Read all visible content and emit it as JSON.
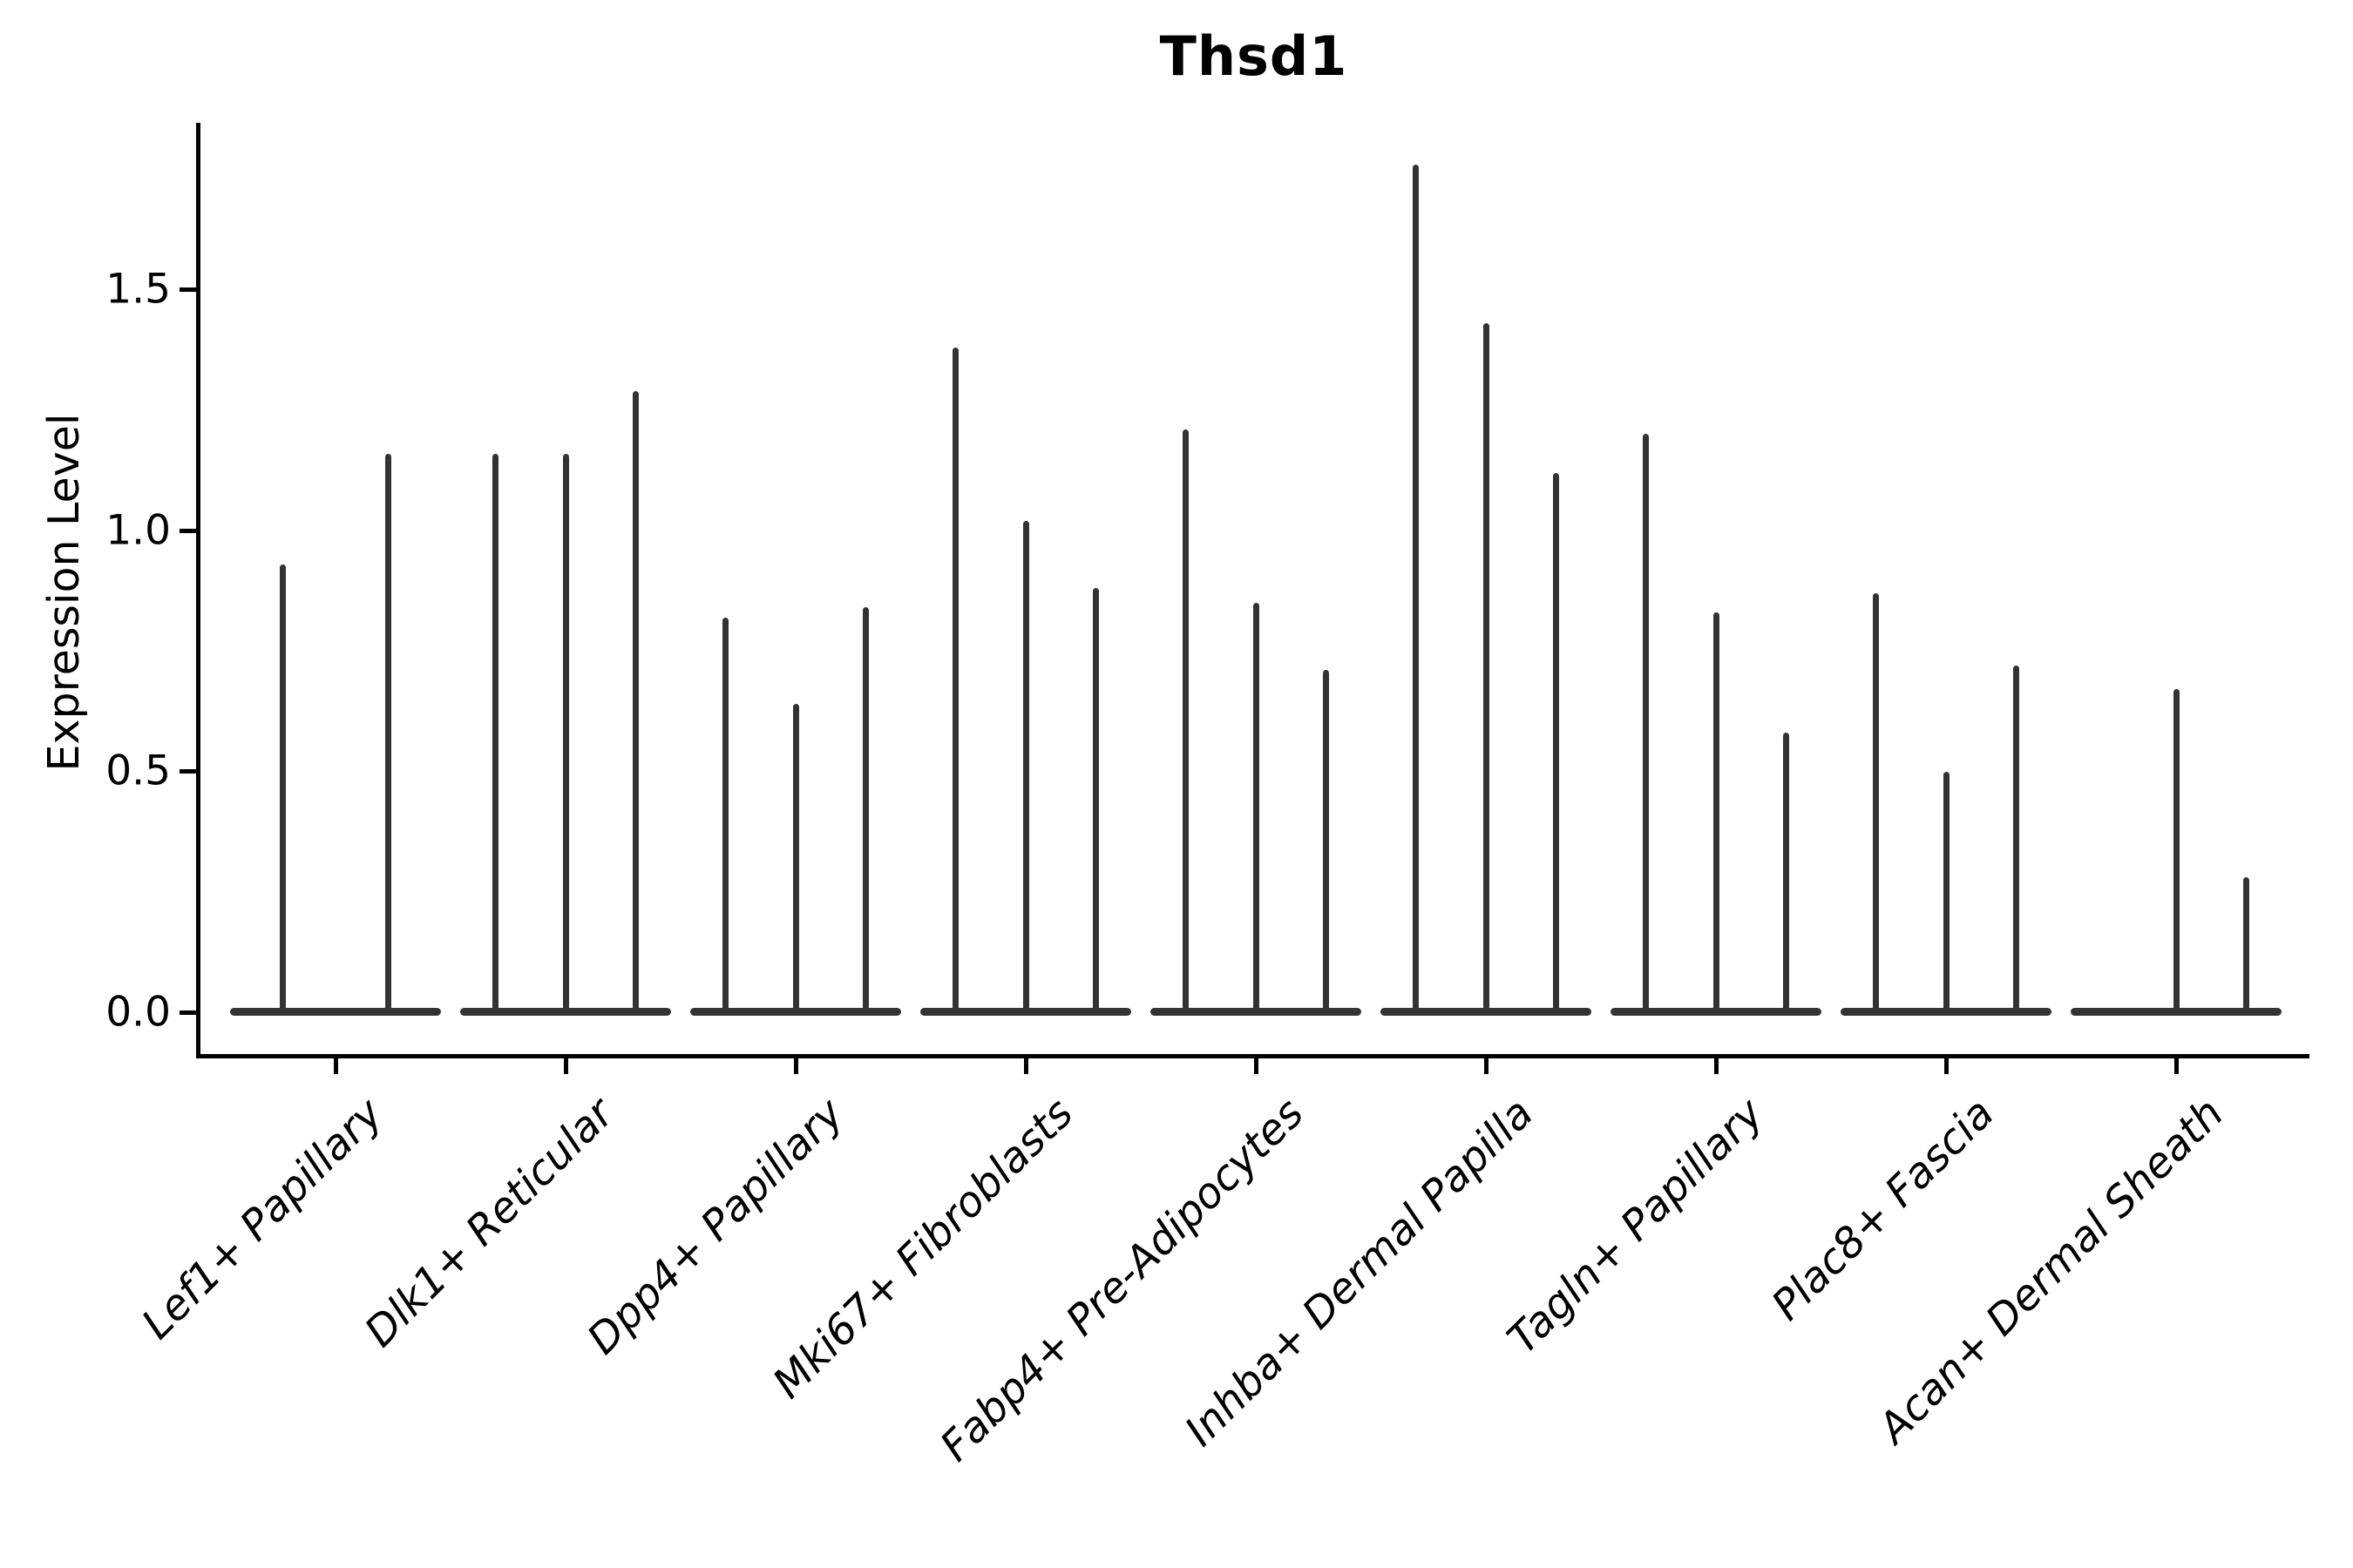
{
  "title": "Thsd1",
  "axes": {
    "ylabel": "Expression Level",
    "yticks": [
      "0.0",
      "0.5",
      "1.0",
      "1.5"
    ],
    "ytick_values": [
      0.0,
      0.5,
      1.0,
      1.5
    ]
  },
  "colors": {
    "violin": "#333333",
    "axis": "#000000",
    "background": "#ffffff",
    "text": "#000000"
  },
  "chart_data": {
    "type": "violin",
    "title": "Thsd1",
    "xlabel": "",
    "ylabel": "Expression Level",
    "ylim": [
      0,
      1.85
    ],
    "grid": false,
    "legend": "none",
    "categories": [
      "Lef1+ Papillary",
      "Dlk1+ Reticular",
      "Dpp4+ Papillary",
      "Mki67+ Fibroblasts",
      "Fabp4+ Pre-Adipocytes",
      "Inhba+ Dermal Papilla",
      "Tagln+ Papillary",
      "Plac8+ Fascia",
      "Acan+ Dermal Sheath"
    ],
    "description": "Violin plot of Thsd1 expression per fibroblast cluster; each category holds narrow sub-violins whose mass sits at 0 with a thin spike up to the maximum expressing cell. Values below are the spike maxima (0 = flat violin, no expressing cells).",
    "series": [
      {
        "category": "Lef1+ Papillary",
        "violin_max": [
          0.93,
          1.16
        ]
      },
      {
        "category": "Dlk1+ Reticular",
        "violin_max": [
          1.16,
          1.16,
          1.29
        ]
      },
      {
        "category": "Dpp4+ Papillary",
        "violin_max": [
          0.82,
          0.64,
          0.84
        ]
      },
      {
        "category": "Mki67+ Fibroblasts",
        "violin_max": [
          1.38,
          1.02,
          0.88
        ]
      },
      {
        "category": "Fabp4+ Pre-Adipocytes",
        "violin_max": [
          1.21,
          0.85,
          0.71
        ]
      },
      {
        "category": "Inhba+ Dermal Papilla",
        "violin_max": [
          1.76,
          1.43,
          1.12
        ]
      },
      {
        "category": "Tagln+ Papillary",
        "violin_max": [
          1.2,
          0.83,
          0.58
        ]
      },
      {
        "category": "Plac8+ Fascia",
        "violin_max": [
          0.87,
          0.5,
          0.72
        ]
      },
      {
        "category": "Acan+ Dermal Sheath",
        "violin_max": [
          0,
          0.67,
          0.28
        ]
      }
    ]
  }
}
